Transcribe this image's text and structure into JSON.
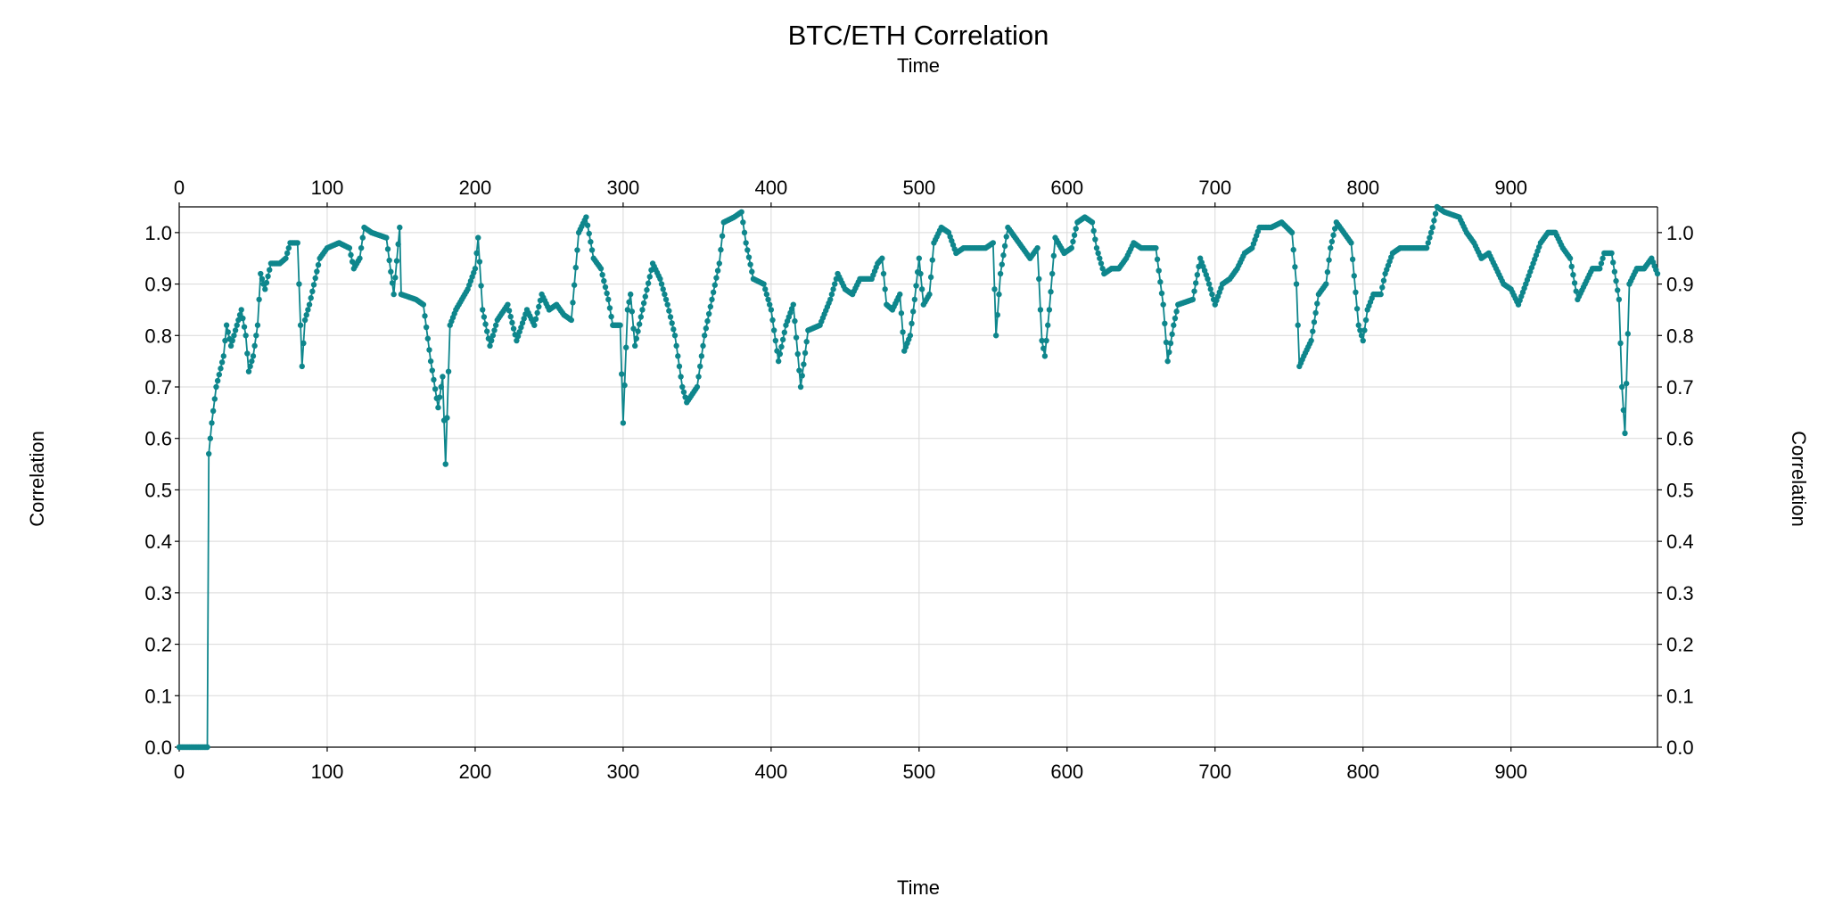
{
  "chart_data": {
    "type": "line",
    "title": "BTC/ETH Correlation",
    "subtitle": "Time",
    "xlabel": "Time",
    "ylabel": "Correlation",
    "ylabel_right": "Correlation",
    "xlim": [
      0,
      999
    ],
    "ylim": [
      0,
      1.05
    ],
    "x_ticks": [
      0,
      100,
      200,
      300,
      400,
      500,
      600,
      700,
      800,
      900
    ],
    "y_ticks": [
      0.0,
      0.1,
      0.2,
      0.3,
      0.4,
      0.5,
      0.6,
      0.7,
      0.8,
      0.9,
      1.0
    ],
    "grid": true,
    "legend": "none",
    "colors": {
      "series": "#0e868c",
      "grid": "#d9d9d9",
      "axis": "#000000"
    },
    "series": [
      {
        "anchors": [
          [
            0,
            0.0
          ],
          [
            19,
            0.0
          ],
          [
            20,
            0.57
          ],
          [
            22,
            0.63
          ],
          [
            25,
            0.7
          ],
          [
            30,
            0.76
          ],
          [
            32,
            0.82
          ],
          [
            35,
            0.78
          ],
          [
            40,
            0.83
          ],
          [
            42,
            0.85
          ],
          [
            45,
            0.8
          ],
          [
            47,
            0.73
          ],
          [
            50,
            0.76
          ],
          [
            53,
            0.82
          ],
          [
            55,
            0.92
          ],
          [
            58,
            0.89
          ],
          [
            62,
            0.94
          ],
          [
            68,
            0.94
          ],
          [
            72,
            0.95
          ],
          [
            75,
            0.98
          ],
          [
            80,
            0.98
          ],
          [
            83,
            0.74
          ],
          [
            85,
            0.83
          ],
          [
            88,
            0.86
          ],
          [
            95,
            0.95
          ],
          [
            100,
            0.97
          ],
          [
            108,
            0.98
          ],
          [
            115,
            0.97
          ],
          [
            118,
            0.93
          ],
          [
            122,
            0.95
          ],
          [
            125,
            1.01
          ],
          [
            130,
            1.0
          ],
          [
            140,
            0.99
          ],
          [
            145,
            0.88
          ],
          [
            149,
            1.01
          ],
          [
            150,
            0.88
          ],
          [
            160,
            0.87
          ],
          [
            165,
            0.86
          ],
          [
            170,
            0.75
          ],
          [
            175,
            0.66
          ],
          [
            178,
            0.72
          ],
          [
            180,
            0.55
          ],
          [
            183,
            0.82
          ],
          [
            187,
            0.85
          ],
          [
            195,
            0.89
          ],
          [
            200,
            0.93
          ],
          [
            202,
            0.99
          ],
          [
            205,
            0.85
          ],
          [
            210,
            0.78
          ],
          [
            215,
            0.83
          ],
          [
            222,
            0.86
          ],
          [
            228,
            0.79
          ],
          [
            235,
            0.85
          ],
          [
            240,
            0.82
          ],
          [
            245,
            0.88
          ],
          [
            250,
            0.85
          ],
          [
            255,
            0.86
          ],
          [
            260,
            0.84
          ],
          [
            265,
            0.83
          ],
          [
            270,
            1.0
          ],
          [
            275,
            1.03
          ],
          [
            280,
            0.95
          ],
          [
            285,
            0.93
          ],
          [
            290,
            0.87
          ],
          [
            293,
            0.82
          ],
          [
            298,
            0.82
          ],
          [
            300,
            0.63
          ],
          [
            303,
            0.85
          ],
          [
            305,
            0.88
          ],
          [
            308,
            0.78
          ],
          [
            313,
            0.85
          ],
          [
            320,
            0.94
          ],
          [
            325,
            0.91
          ],
          [
            330,
            0.86
          ],
          [
            335,
            0.8
          ],
          [
            340,
            0.7
          ],
          [
            343,
            0.67
          ],
          [
            350,
            0.7
          ],
          [
            355,
            0.8
          ],
          [
            360,
            0.87
          ],
          [
            365,
            0.94
          ],
          [
            368,
            1.02
          ],
          [
            375,
            1.03
          ],
          [
            380,
            1.04
          ],
          [
            383,
            0.98
          ],
          [
            388,
            0.91
          ],
          [
            395,
            0.9
          ],
          [
            400,
            0.85
          ],
          [
            405,
            0.75
          ],
          [
            410,
            0.82
          ],
          [
            415,
            0.86
          ],
          [
            420,
            0.7
          ],
          [
            425,
            0.81
          ],
          [
            433,
            0.82
          ],
          [
            440,
            0.87
          ],
          [
            445,
            0.92
          ],
          [
            450,
            0.89
          ],
          [
            455,
            0.88
          ],
          [
            460,
            0.91
          ],
          [
            468,
            0.91
          ],
          [
            472,
            0.94
          ],
          [
            475,
            0.95
          ],
          [
            478,
            0.86
          ],
          [
            482,
            0.85
          ],
          [
            487,
            0.88
          ],
          [
            490,
            0.77
          ],
          [
            494,
            0.8
          ],
          [
            497,
            0.87
          ],
          [
            500,
            0.95
          ],
          [
            503,
            0.86
          ],
          [
            507,
            0.88
          ],
          [
            510,
            0.98
          ],
          [
            515,
            1.01
          ],
          [
            520,
            1.0
          ],
          [
            525,
            0.96
          ],
          [
            530,
            0.97
          ],
          [
            538,
            0.97
          ],
          [
            545,
            0.97
          ],
          [
            550,
            0.98
          ],
          [
            552,
            0.8
          ],
          [
            555,
            0.92
          ],
          [
            560,
            1.01
          ],
          [
            565,
            0.99
          ],
          [
            570,
            0.97
          ],
          [
            575,
            0.95
          ],
          [
            580,
            0.97
          ],
          [
            583,
            0.79
          ],
          [
            585,
            0.76
          ],
          [
            588,
            0.85
          ],
          [
            592,
            0.99
          ],
          [
            598,
            0.96
          ],
          [
            603,
            0.97
          ],
          [
            607,
            1.02
          ],
          [
            612,
            1.03
          ],
          [
            617,
            1.02
          ],
          [
            620,
            0.97
          ],
          [
            625,
            0.92
          ],
          [
            630,
            0.93
          ],
          [
            635,
            0.93
          ],
          [
            640,
            0.95
          ],
          [
            645,
            0.98
          ],
          [
            650,
            0.97
          ],
          [
            655,
            0.97
          ],
          [
            660,
            0.97
          ],
          [
            665,
            0.86
          ],
          [
            668,
            0.75
          ],
          [
            672,
            0.82
          ],
          [
            675,
            0.86
          ],
          [
            685,
            0.87
          ],
          [
            690,
            0.95
          ],
          [
            695,
            0.91
          ],
          [
            700,
            0.86
          ],
          [
            705,
            0.9
          ],
          [
            710,
            0.91
          ],
          [
            715,
            0.93
          ],
          [
            720,
            0.96
          ],
          [
            725,
            0.97
          ],
          [
            730,
            1.01
          ],
          [
            738,
            1.01
          ],
          [
            745,
            1.02
          ],
          [
            752,
            1.0
          ],
          [
            755,
            0.9
          ],
          [
            757,
            0.74
          ],
          [
            760,
            0.76
          ],
          [
            765,
            0.79
          ],
          [
            770,
            0.88
          ],
          [
            775,
            0.9
          ],
          [
            778,
            0.97
          ],
          [
            782,
            1.02
          ],
          [
            787,
            1.0
          ],
          [
            792,
            0.98
          ],
          [
            797,
            0.82
          ],
          [
            800,
            0.79
          ],
          [
            803,
            0.85
          ],
          [
            807,
            0.88
          ],
          [
            812,
            0.88
          ],
          [
            815,
            0.92
          ],
          [
            820,
            0.96
          ],
          [
            825,
            0.97
          ],
          [
            830,
            0.97
          ],
          [
            838,
            0.97
          ],
          [
            843,
            0.97
          ],
          [
            847,
            1.01
          ],
          [
            850,
            1.05
          ],
          [
            855,
            1.04
          ],
          [
            865,
            1.03
          ],
          [
            870,
            1.0
          ],
          [
            875,
            0.98
          ],
          [
            880,
            0.95
          ],
          [
            885,
            0.96
          ],
          [
            890,
            0.93
          ],
          [
            895,
            0.9
          ],
          [
            900,
            0.89
          ],
          [
            905,
            0.86
          ],
          [
            910,
            0.9
          ],
          [
            915,
            0.94
          ],
          [
            920,
            0.98
          ],
          [
            925,
            1.0
          ],
          [
            930,
            1.0
          ],
          [
            935,
            0.97
          ],
          [
            940,
            0.95
          ],
          [
            945,
            0.87
          ],
          [
            950,
            0.9
          ],
          [
            955,
            0.93
          ],
          [
            960,
            0.93
          ],
          [
            963,
            0.96
          ],
          [
            968,
            0.96
          ],
          [
            973,
            0.87
          ],
          [
            975,
            0.7
          ],
          [
            977,
            0.61
          ],
          [
            980,
            0.9
          ],
          [
            985,
            0.93
          ],
          [
            990,
            0.93
          ],
          [
            995,
            0.95
          ],
          [
            999,
            0.92
          ]
        ]
      }
    ]
  }
}
